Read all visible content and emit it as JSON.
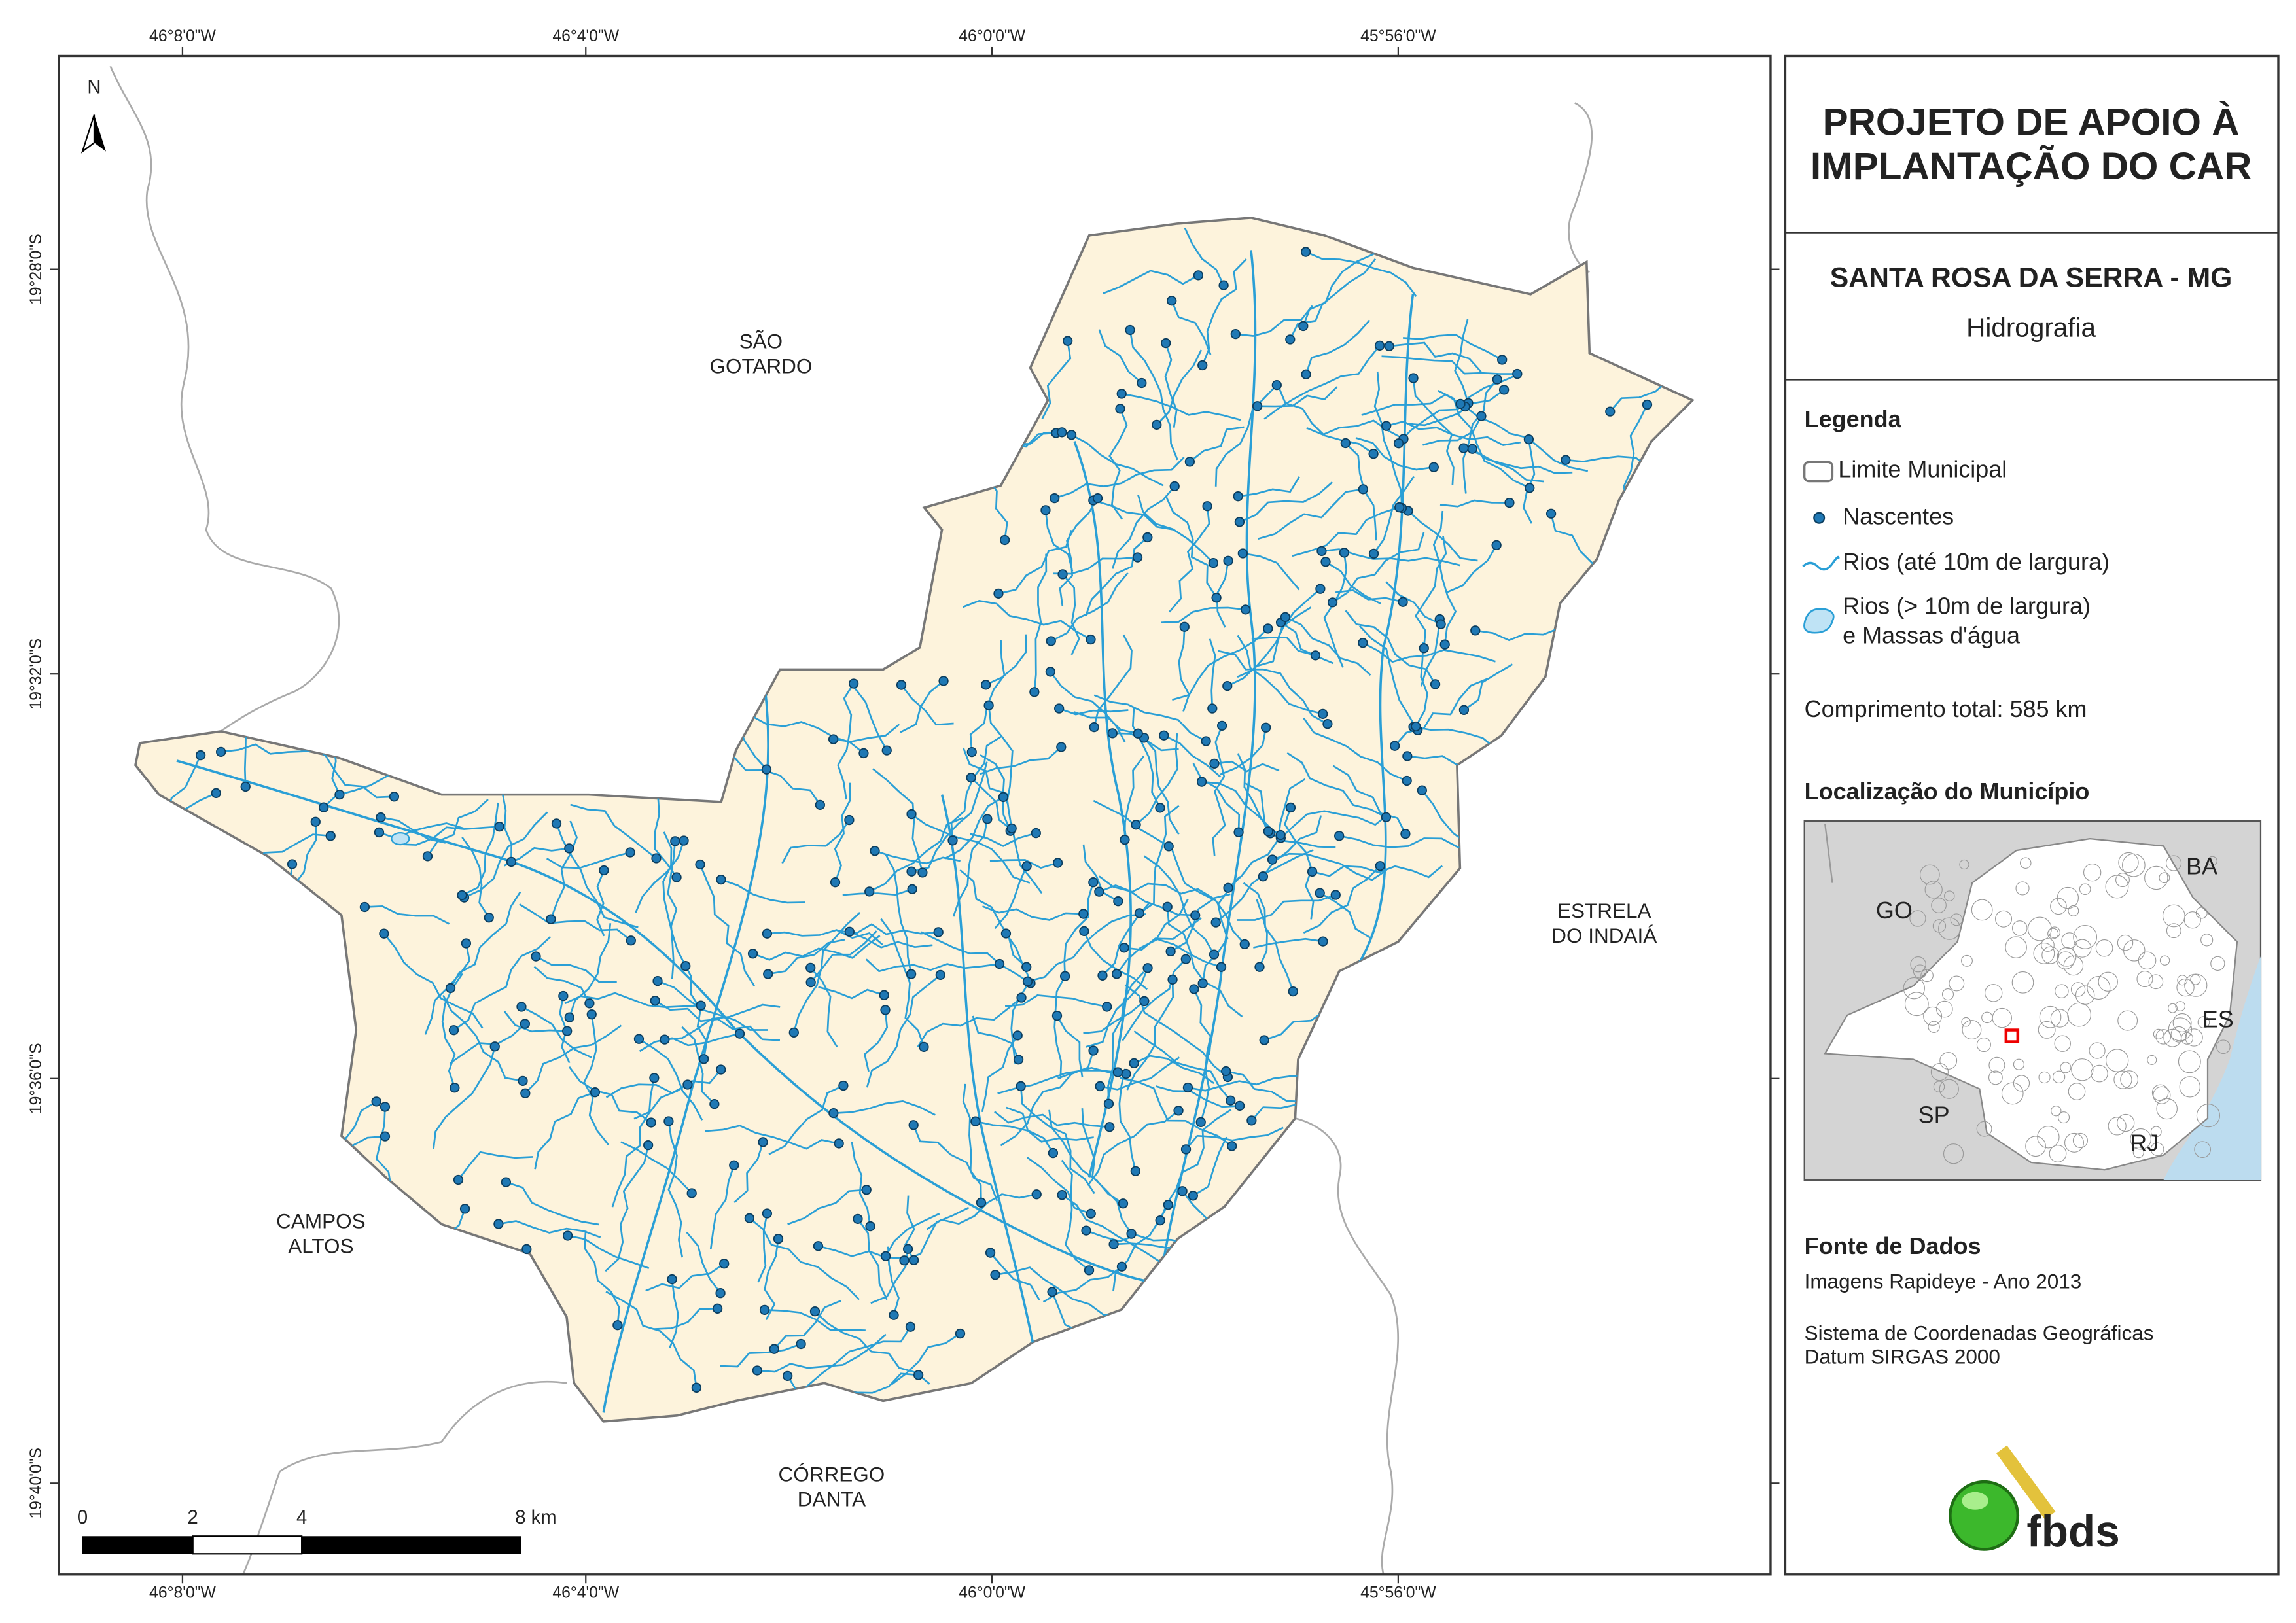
{
  "map": {
    "coordinates": {
      "top": [
        "46°8'0\"W",
        "46°4'0\"W",
        "46°0'0\"W",
        "45°56'0\"W"
      ],
      "bottom": [
        "46°8'0\"W",
        "46°4'0\"W",
        "46°0'0\"W",
        "45°56'0\"W"
      ],
      "left": [
        "19°28'0\"S",
        "19°32'0\"S",
        "19°36'0\"S",
        "19°40'0\"S"
      ]
    },
    "north": "N",
    "places": [
      {
        "lines": [
          "SÃO",
          "GOTARDO"
        ]
      },
      {
        "lines": [
          "ESTRELA",
          "DO INDAIÁ"
        ]
      },
      {
        "lines": [
          "CAMPOS",
          "ALTOS"
        ]
      },
      {
        "lines": [
          "CÓRREGO",
          "DANTA"
        ]
      }
    ],
    "scale": [
      "0",
      "2",
      "4",
      "8 km"
    ]
  },
  "panel": {
    "title_lines": [
      "PROJETO DE APOIO À",
      "IMPLANTAÇÃO DO CAR"
    ],
    "subtitle": "SANTA ROSA DA SERRA - MG",
    "theme": "Hidrografia",
    "legend": {
      "title": "Legenda",
      "items": [
        {
          "lines": [
            "Limite Municipal"
          ]
        },
        {
          "lines": [
            "Nascentes"
          ]
        },
        {
          "lines": [
            "Rios (até 10m de largura)"
          ]
        },
        {
          "lines": [
            "Rios (> 10m de largura)",
            "e Massas d'água"
          ]
        }
      ]
    },
    "total_length": "Comprimento total:  585 km",
    "location": {
      "title": "Localização do Município",
      "labels": [
        "BA",
        "GO",
        "ES",
        "SP",
        "RJ"
      ]
    },
    "source": {
      "title": "Fonte de Dados",
      "lines": [
        "Imagens Rapideye - Ano 2013",
        "Sistema de Coordenadas Geográficas",
        "Datum SIRGAS 2000"
      ]
    },
    "logo": "fbds"
  }
}
